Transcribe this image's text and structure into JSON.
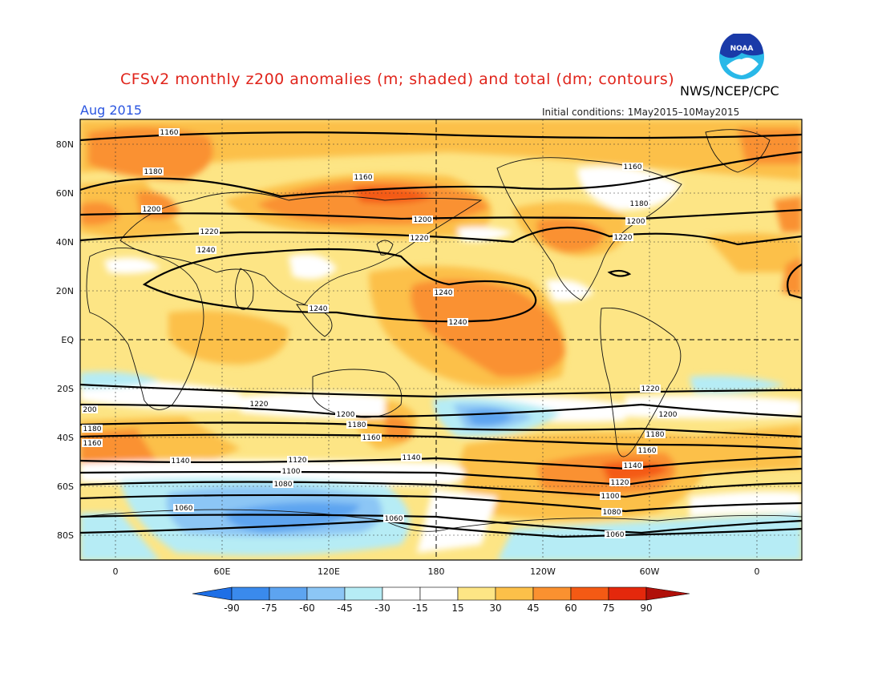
{
  "header": {
    "title": "CFSv2 monthly z200 anomalies (m; shaded) and total (dm; contours)",
    "agency": "NWS/NCEP/CPC",
    "month": "Aug 2015",
    "initial_conditions": "Initial conditions: 1May2015–10May2015",
    "logo_text": "NOAA"
  },
  "map": {
    "lat_labels": [
      "80N",
      "60N",
      "40N",
      "20N",
      "EQ",
      "20S",
      "40S",
      "60S",
      "80S"
    ],
    "lon_labels": [
      "0",
      "60E",
      "120E",
      "180",
      "120W",
      "60W",
      "0"
    ],
    "contour_labels": [
      "1160",
      "1180",
      "1200",
      "1220",
      "1240",
      "1140",
      "1120",
      "1100",
      "1080",
      "1060",
      "200"
    ]
  },
  "legend": {
    "ticks": [
      "-90",
      "-75",
      "-60",
      "-45",
      "-30",
      "-15",
      "15",
      "30",
      "45",
      "60",
      "75",
      "90"
    ],
    "colors": [
      "#1e6fe6",
      "#3a8aec",
      "#5da4f0",
      "#8cc6f5",
      "#b6ecf5",
      "#ffffff",
      "#fde585",
      "#fcc049",
      "#fa9130",
      "#f45a14",
      "#e4280c",
      "#b0100a",
      "#b0100a"
    ]
  },
  "colors": {
    "title": "#e0241b",
    "month": "#2a55e0",
    "logo_blue": "#1a3aa8"
  }
}
